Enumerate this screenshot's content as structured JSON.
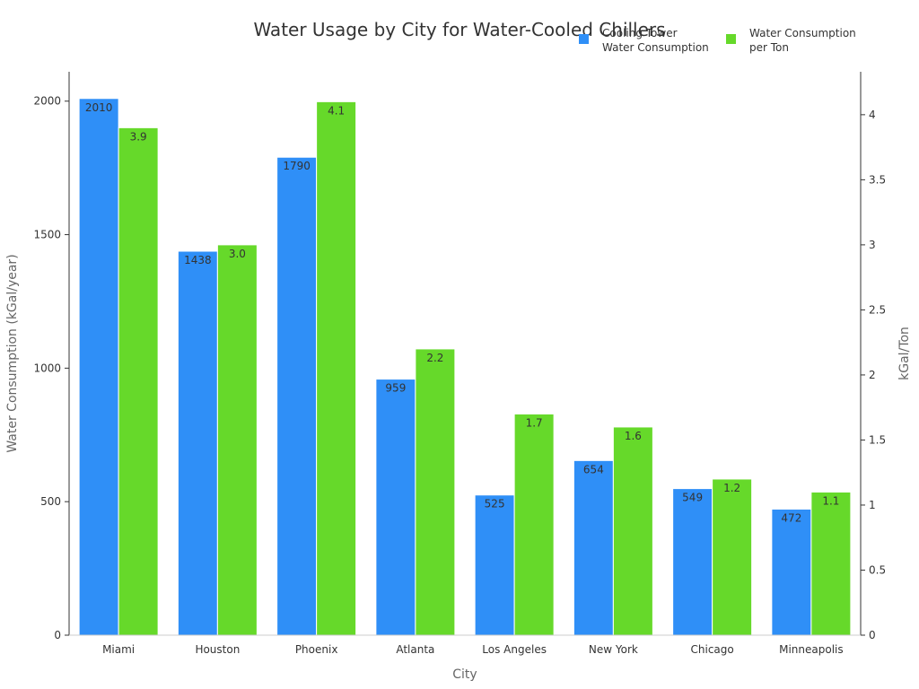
{
  "chart_data": {
    "type": "bar",
    "title": "Water Usage by City for Water-Cooled Chillers",
    "xlabel": "City",
    "ylabel": "Water Consumption (kGal/year)",
    "y2label": "kGal/Ton",
    "categories": [
      "Miami",
      "Houston",
      "Phoenix",
      "Atlanta",
      "Los Angeles",
      "New York",
      "Chicago",
      "Minneapolis"
    ],
    "series": [
      {
        "name": "Cooling Tower Water Consumption",
        "legend_lines": [
          "Cooling Tower",
          "Water Consumption"
        ],
        "axis": "left",
        "color": "#2f8ff7",
        "values": [
          2010,
          1438,
          1790,
          959,
          525,
          654,
          549,
          472
        ],
        "labels": [
          "2010",
          "1438",
          "1790",
          "959",
          "525",
          "654",
          "549",
          "472"
        ]
      },
      {
        "name": "Water Consumption per Ton",
        "legend_lines": [
          "Water Consumption",
          "per Ton"
        ],
        "axis": "right",
        "color": "#66d92a",
        "values": [
          3.9,
          3.0,
          4.1,
          2.2,
          1.7,
          1.6,
          1.2,
          1.1
        ],
        "labels": [
          "3.9",
          "3.0",
          "4.1",
          "2.2",
          "1.7",
          "1.6",
          "1.2",
          "1.1"
        ]
      }
    ],
    "ylim": [
      0,
      2110
    ],
    "y2lim": [
      0,
      4.33
    ],
    "yticks": [
      0,
      500,
      1000,
      1500,
      2000
    ],
    "ytick_labels": [
      "0",
      "500",
      "1000",
      "1500",
      "2000"
    ],
    "y2ticks": [
      0,
      0.5,
      1,
      1.5,
      2,
      2.5,
      3,
      3.5,
      4
    ],
    "y2tick_labels": [
      "0",
      "0.5",
      "1",
      "1.5",
      "2",
      "2.5",
      "3",
      "3.5",
      "4"
    ],
    "grid": false,
    "legend_position": "top-right"
  }
}
